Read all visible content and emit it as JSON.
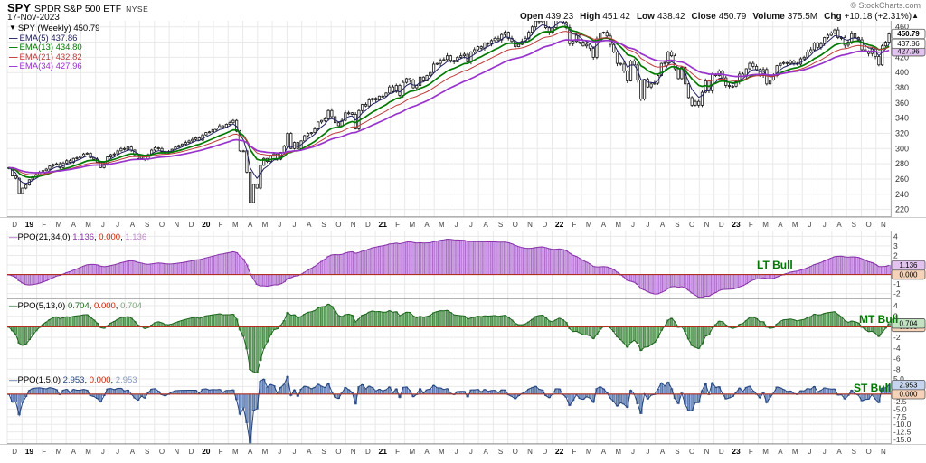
{
  "header": {
    "symbol": "SPY",
    "name": "SPDR S&P 500 ETF",
    "exchange": "NYSE",
    "date": "17-Nov-2023",
    "credit": "© StockCharts.com",
    "quote": {
      "open_label": "Open",
      "open": "439.23",
      "high_label": "High",
      "high": "451.42",
      "low_label": "Low",
      "low": "438.42",
      "close_label": "Close",
      "close": "450.79",
      "volume_label": "Volume",
      "volume": "375.5M",
      "chg_label": "Chg",
      "chg": "+10.18 (+2.31%)",
      "chg_arrow": "▲"
    }
  },
  "main_legend": {
    "collapse_icon": "▼",
    "title": "SPY (Weekly) 450.79",
    "emas": [
      {
        "dash": "—",
        "text": "EMA(5) 437.86",
        "color": "#202060"
      },
      {
        "dash": "—",
        "text": "EMA(13) 434.80",
        "color": "#007a00"
      },
      {
        "dash": "—",
        "text": "EMA(21) 432.82",
        "color": "#c03a3a"
      },
      {
        "dash": "—",
        "text": "EMA(34) 427.96",
        "color": "#9933cc"
      }
    ]
  },
  "colors": {
    "grid": "#e9e9e9",
    "axis_line": "#999999",
    "zero_line": "#b03020",
    "bull_label": "#007700",
    "tick_text": "#333333",
    "zero_box_bg": "#f6d3b8"
  },
  "chart_data": [
    {
      "type": "candlestick",
      "symbol": "SPY",
      "timeframe": "Weekly",
      "ylim": [
        210,
        468
      ],
      "ytick_min": 220,
      "ytick_max": 460,
      "ytick_step": 20,
      "bar_color": "#151515",
      "overlays": [
        {
          "type": "ema",
          "period": 5,
          "color": "#202060",
          "width": 1
        },
        {
          "type": "ema",
          "period": 13,
          "color": "#007a00",
          "width": 1.7
        },
        {
          "type": "ema",
          "period": 21,
          "color": "#c03a3a",
          "width": 1
        },
        {
          "type": "ema",
          "period": 34,
          "color": "#9933cc",
          "width": 1.7
        }
      ],
      "price_boxes": [
        {
          "text": "450.79",
          "value": 450.79,
          "bg": "#ffffff",
          "bold": true
        },
        {
          "text": "437.86",
          "value": 437.86,
          "bg": "#ffffff",
          "bold": false
        },
        {
          "text": "427.96",
          "value": 427.96,
          "bg": "#e2c3f0",
          "bold": false
        }
      ],
      "x_months": [
        "D",
        "19",
        "F",
        "M",
        "A",
        "M",
        "J",
        "J",
        "A",
        "S",
        "O",
        "N",
        "D",
        "20",
        "F",
        "M",
        "A",
        "M",
        "J",
        "J",
        "A",
        "S",
        "O",
        "N",
        "D",
        "21",
        "F",
        "M",
        "A",
        "M",
        "J",
        "J",
        "A",
        "S",
        "O",
        "N",
        "D",
        "22",
        "F",
        "M",
        "A",
        "M",
        "J",
        "J",
        "A",
        "S",
        "O",
        "N",
        "D",
        "23",
        "F",
        "M",
        "A",
        "M",
        "J",
        "J",
        "A",
        "S",
        "O",
        "N"
      ],
      "closes": [
        275,
        264,
        261,
        241,
        248,
        252,
        259,
        263,
        266,
        269,
        271,
        273,
        277,
        279,
        280,
        275,
        281,
        284,
        282,
        287,
        288,
        290,
        293,
        294,
        288,
        286,
        282,
        275,
        280,
        289,
        292,
        293,
        297,
        300,
        299,
        302,
        298,
        292,
        287,
        290,
        286,
        292,
        298,
        301,
        300,
        296,
        294,
        296,
        299,
        302,
        304,
        306,
        308,
        310,
        312,
        314,
        311,
        318,
        321,
        322,
        325,
        327,
        330,
        328,
        332,
        334,
        337,
        323,
        297,
        297,
        269,
        229,
        253,
        248,
        278,
        287,
        283,
        290,
        293,
        286,
        295,
        303,
        320,
        300,
        308,
        300,
        310,
        317,
        320,
        321,
        326,
        335,
        337,
        339,
        350,
        342,
        334,
        330,
        337,
        347,
        347,
        345,
        326,
        350,
        358,
        356,
        364,
        366,
        364,
        369,
        369,
        373,
        381,
        375,
        383,
        370,
        387,
        392,
        390,
        380,
        383,
        394,
        389,
        396,
        400,
        411,
        412,
        416,
        417,
        422,
        416,
        414,
        420,
        422,
        424,
        414,
        427,
        430,
        434,
        432,
        439,
        438,
        442,
        445,
        443,
        450,
        453,
        445,
        441,
        434,
        437,
        441,
        445,
        453,
        460,
        468,
        467,
        469,
        459,
        453,
        459,
        471,
        475,
        466,
        459,
        438,
        441,
        449,
        440,
        435,
        437,
        432,
        420,
        444,
        452,
        453,
        448,
        437,
        427,
        412,
        411,
        402,
        389,
        415,
        410,
        390,
        365,
        391,
        381,
        385,
        386,
        396,
        412,
        413,
        427,
        422,
        405,
        392,
        407,
        385,
        367,
        357,
        362,
        357,
        374,
        389,
        376,
        398,
        396,
        402,
        393,
        383,
        382,
        382,
        388,
        398,
        395,
        405,
        412,
        408,
        404,
        396,
        404,
        385,
        390,
        396,
        409,
        412,
        413,
        412,
        415,
        412,
        411,
        418,
        420,
        427,
        430,
        439,
        433,
        438,
        446,
        449,
        452,
        456,
        446,
        446,
        436,
        440,
        451,
        446,
        443,
        430,
        428,
        425,
        431,
        421,
        410,
        435,
        440,
        450.79
      ]
    },
    {
      "type": "bar",
      "name": "PPO(21,34,0)",
      "params": {
        "fast": 21,
        "slow": 34,
        "signal": 0
      },
      "source": "histogram of PPO computed from weekly closes",
      "ylim": [
        -2.6,
        4.6
      ],
      "grid_vals": [
        -2,
        -1,
        1,
        2,
        3,
        4
      ],
      "ytick_vals": [
        4,
        3,
        2,
        -1,
        -2
      ],
      "ytick_labels": [
        "4",
        "3",
        "2",
        "-1",
        "-2"
      ],
      "last": 1.136,
      "last_label": "1.136",
      "zero_label": "0.000",
      "annotation": "LT Bull",
      "fill": "#cc99e6",
      "stroke": "#8833aa",
      "box_bg": "#e2c3f0",
      "legend_colors": {
        "v1": "#8833aa",
        "v2": "#cc2200",
        "v3": "#bb88cc"
      }
    },
    {
      "type": "bar",
      "name": "PPO(5,13,0)",
      "params": {
        "fast": 5,
        "slow": 13,
        "signal": 0
      },
      "source": "histogram of PPO computed from weekly closes",
      "ylim": [
        -8.8,
        5.2
      ],
      "grid_vals": [
        -8,
        -6,
        -4,
        -2,
        2,
        4
      ],
      "ytick_vals": [
        4,
        2,
        -2,
        -4,
        -6,
        -8
      ],
      "ytick_labels": [
        "4",
        "2",
        "-2",
        "-4",
        "-6",
        "-8"
      ],
      "last": 0.704,
      "last_label": "0.704",
      "zero_label": "0.000",
      "annotation": "MT Bull",
      "fill": "#6aa86a",
      "stroke": "#1e661e",
      "box_bg": "#c2e2c2",
      "legend_colors": {
        "v1": "#1e661e",
        "v2": "#cc2200",
        "v3": "#7aa87a"
      }
    },
    {
      "type": "bar",
      "name": "PPO(1,5,0)",
      "params": {
        "fast": 1,
        "slow": 5,
        "signal": 0
      },
      "source": "histogram of PPO computed from weekly closes",
      "ylim": [
        -16.5,
        6.8
      ],
      "grid_vals": [
        -15,
        -12.5,
        -10,
        -7.5,
        -5,
        -2.5,
        2.5,
        5
      ],
      "ytick_vals": [
        5,
        -2.5,
        -5,
        -7.5,
        -10,
        -12.5,
        -15
      ],
      "ytick_labels": [
        "5.0",
        "-2.5",
        "-5.0",
        "-7.5",
        "-10.0",
        "-12.5",
        "-15.0"
      ],
      "last": 2.953,
      "last_label": "2.953",
      "zero_label": "0.000",
      "annotation": "ST Bull",
      "fill": "#7b97c8",
      "stroke": "#24447e",
      "box_bg": "#c6d4ee",
      "legend_colors": {
        "v1": "#24447e",
        "v2": "#cc2200",
        "v3": "#8899bb"
      }
    }
  ]
}
